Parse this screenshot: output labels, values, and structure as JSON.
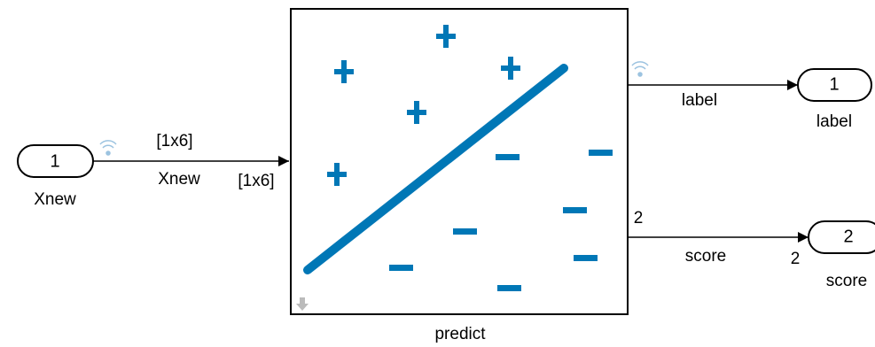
{
  "inport": {
    "number": "1",
    "name": "Xnew"
  },
  "input_signal": {
    "dimension": "[1x6]",
    "name": "Xnew",
    "port_dimension": "[1x6]"
  },
  "block": {
    "name": "predict"
  },
  "outputs": [
    {
      "signal_name": "label",
      "number": "1",
      "name": "label"
    },
    {
      "dimension": "2",
      "signal_name": "score",
      "port_dimension": "2",
      "number": "2",
      "name": "score"
    }
  ]
}
